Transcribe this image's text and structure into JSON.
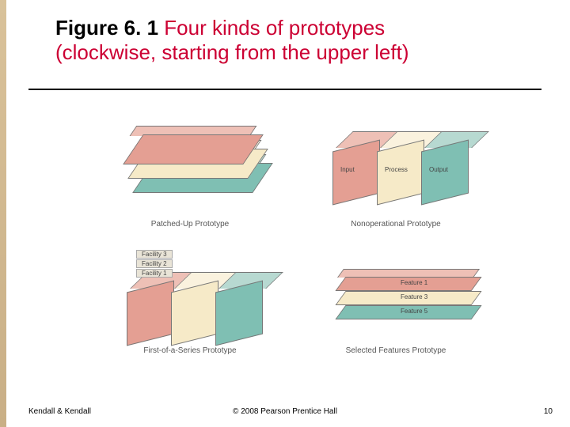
{
  "title": {
    "prefix_bold": "Figure 6. 1 ",
    "rest_line1": "Four kinds of prototypes",
    "line2": "(clockwise, starting from the upper left)"
  },
  "colors": {
    "salmon": "#e49f93",
    "cream": "#f6eac8",
    "teal": "#7fbfb3",
    "tealTop": "#b7d9d1",
    "creamTop": "#faf2de",
    "salmonTop": "#eec0b6",
    "labelBg": "#e9e4d7"
  },
  "quad": {
    "ul": {
      "caption": "Patched-Up Prototype"
    },
    "ur": {
      "caption": "Nonoperational Prototype",
      "blocks": [
        {
          "label": "Input",
          "fill": "#e49f93",
          "top": "#eec0b6"
        },
        {
          "label": "Process",
          "fill": "#f6eac8",
          "top": "#faf2de"
        },
        {
          "label": "Output",
          "fill": "#7fbfb3",
          "top": "#b7d9d1"
        }
      ]
    },
    "ll": {
      "caption": "First-of-a-Series Prototype",
      "blocks": [
        {
          "label": "Facility 1",
          "fill": "#e49f93",
          "top": "#eec0b6"
        },
        {
          "label": "Facility 2",
          "fill": "#f6eac8",
          "top": "#faf2de"
        },
        {
          "label": "Facility 3",
          "fill": "#7fbfb3",
          "top": "#b7d9d1"
        }
      ]
    },
    "lr": {
      "caption": "Selected Features Prototype",
      "layers": [
        {
          "label": "Feature 1",
          "fill": "#e49f93",
          "top": "#eec0b6"
        },
        {
          "label": "Feature 3",
          "fill": "#f6eac8",
          "top": "#faf2de"
        },
        {
          "label": "Feature 5",
          "fill": "#7fbfb3",
          "top": "#b7d9d1"
        }
      ]
    }
  },
  "ul_stack": [
    {
      "fill": "#7fbfb3",
      "top": "#b7d9d1"
    },
    {
      "fill": "#f6eac8",
      "top": "#faf2de"
    },
    {
      "fill": "#e49f93",
      "top": "#eec0b6"
    }
  ],
  "footer": {
    "left": "Kendall & Kendall",
    "mid": "© 2008 Pearson Prentice Hall",
    "page": "10"
  }
}
